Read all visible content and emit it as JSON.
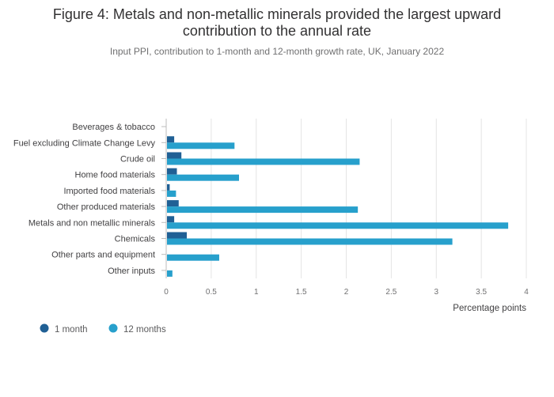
{
  "chart_data": {
    "type": "bar",
    "orientation": "horizontal",
    "title_line1": "Figure 4: Metals and non-metallic minerals provided the largest upward",
    "title_line2": "contribution to the annual rate",
    "subtitle": "Input PPI, contribution to 1-month and 12-month growth rate, UK, January 2022",
    "xlabel": "Percentage points",
    "ylabel": "",
    "xlim": [
      0,
      4
    ],
    "xticks": [
      0,
      0.5,
      1,
      1.5,
      2,
      2.5,
      3,
      3.5,
      4
    ],
    "xtick_labels": [
      "0",
      "0.5",
      "1",
      "1.5",
      "2",
      "2.5",
      "3",
      "3.5",
      "4"
    ],
    "grid": "vertical",
    "legend_position": "bottom-left",
    "categories": [
      "Beverages & tobacco",
      "Fuel excluding Climate Change Levy",
      "Crude oil",
      "Home food materials",
      "Imported food materials",
      "Other produced materials",
      "Metals and non metallic minerals",
      "Chemicals",
      "Other parts and equipment",
      "Other inputs"
    ],
    "series": [
      {
        "name": "1 month",
        "color": "#206095",
        "values": [
          0.0,
          0.08,
          0.16,
          0.11,
          0.03,
          0.13,
          0.08,
          0.22,
          0.0,
          0.0
        ]
      },
      {
        "name": "12 months",
        "color": "#27a0cc",
        "values": [
          0.0,
          0.75,
          2.14,
          0.8,
          0.1,
          2.12,
          3.79,
          3.17,
          0.58,
          0.06
        ]
      }
    ]
  }
}
